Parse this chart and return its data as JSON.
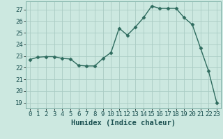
{
  "x": [
    0,
    1,
    2,
    3,
    4,
    5,
    6,
    7,
    8,
    9,
    10,
    11,
    12,
    13,
    14,
    15,
    16,
    17,
    18,
    19,
    20,
    21,
    22,
    23
  ],
  "y": [
    22.7,
    22.9,
    22.95,
    22.95,
    22.8,
    22.75,
    22.2,
    22.15,
    22.15,
    22.8,
    23.3,
    25.4,
    24.8,
    25.5,
    26.3,
    27.3,
    27.1,
    27.1,
    27.1,
    26.3,
    25.7,
    23.7,
    21.7,
    19.0
  ],
  "line_color": "#2e6b5e",
  "marker": "D",
  "marker_size": 2.5,
  "bg_color": "#cce8e0",
  "grid_color": "#aaccC4",
  "xlabel": "Humidex (Indice chaleur)",
  "xlim": [
    -0.5,
    23.5
  ],
  "ylim": [
    18.5,
    27.7
  ],
  "yticks": [
    19,
    20,
    21,
    22,
    23,
    24,
    25,
    26,
    27
  ],
  "xticks": [
    0,
    1,
    2,
    3,
    4,
    5,
    6,
    7,
    8,
    9,
    10,
    11,
    12,
    13,
    14,
    15,
    16,
    17,
    18,
    19,
    20,
    21,
    22,
    23
  ],
  "xlabel_fontsize": 7.5,
  "tick_fontsize": 6.5
}
